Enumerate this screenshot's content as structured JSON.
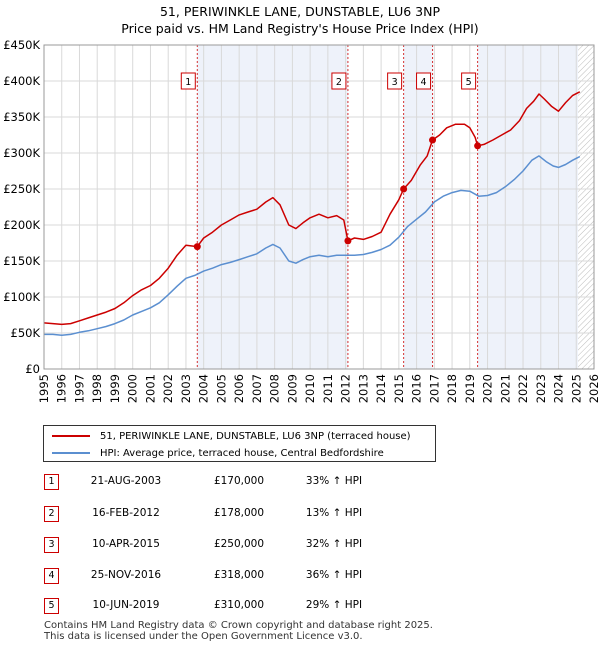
{
  "title_line1": "51, PERIWINKLE LANE, DUNSTABLE, LU6 3NP",
  "title_line2": "Price paid vs. HM Land Registry's House Price Index (HPI)",
  "colors": {
    "property": "#cc0000",
    "hpi": "#5b8fd0",
    "sale_marker": "#cc0000",
    "background_plot": "#ffffff",
    "shade": "#eef2fa",
    "grid": "#d9d9d9",
    "future_hatch": "#bbbbbb"
  },
  "legend": {
    "property_label": "51, PERIWINKLE LANE, DUNSTABLE, LU6 3NP (terraced house)",
    "hpi_label": "HPI: Average price, terraced house, Central Bedfordshire"
  },
  "transactions": [
    {
      "num": "1",
      "date": "21-AUG-2003",
      "price": "£170,000",
      "hpi": "33% ↑ HPI"
    },
    {
      "num": "2",
      "date": "16-FEB-2012",
      "price": "£178,000",
      "hpi": "13% ↑ HPI"
    },
    {
      "num": "3",
      "date": "10-APR-2015",
      "price": "£250,000",
      "hpi": "32% ↑ HPI"
    },
    {
      "num": "4",
      "date": "25-NOV-2016",
      "price": "£318,000",
      "hpi": "36% ↑ HPI"
    },
    {
      "num": "5",
      "date": "10-JUN-2019",
      "price": "£310,000",
      "hpi": "29% ↑ HPI"
    }
  ],
  "footer_line1": "Contains HM Land Registry data © Crown copyright and database right 2025.",
  "footer_line2": "This data is licensed under the Open Government Licence v3.0.",
  "chart_data": {
    "type": "line",
    "title": "51, PERIWINKLE LANE, DUNSTABLE, LU6 3NP",
    "subtitle": "Price paid vs. HM Land Registry's House Price Index (HPI)",
    "xlabel": "",
    "ylabel": "",
    "xlim": [
      1995,
      2026
    ],
    "ylim": [
      0,
      450000
    ],
    "y_ticks": [
      0,
      50000,
      100000,
      150000,
      200000,
      250000,
      300000,
      350000,
      400000,
      450000
    ],
    "y_tick_labels": [
      "£0",
      "£50K",
      "£100K",
      "£150K",
      "£200K",
      "£250K",
      "£300K",
      "£350K",
      "£400K",
      "£450K"
    ],
    "x_ticks": [
      1995,
      1996,
      1997,
      1998,
      1999,
      2000,
      2001,
      2002,
      2003,
      2004,
      2005,
      2006,
      2007,
      2008,
      2009,
      2010,
      2011,
      2012,
      2013,
      2014,
      2015,
      2016,
      2017,
      2018,
      2019,
      2020,
      2021,
      2022,
      2023,
      2024,
      2025,
      2026
    ],
    "x_tick_labels": [
      "1995",
      "1996",
      "1997",
      "1998",
      "1999",
      "2000",
      "2001",
      "2002",
      "2003",
      "2004",
      "2005",
      "2006",
      "2007",
      "2008",
      "2009",
      "2010",
      "2011",
      "2012",
      "2013",
      "2014",
      "2015",
      "2016",
      "2017",
      "2018",
      "2019",
      "2020",
      "2021",
      "2022",
      "2023",
      "2024",
      "2025",
      "2026"
    ],
    "future_from": 2025.1,
    "series": [
      {
        "name": "51, PERIWINKLE LANE, DUNSTABLE, LU6 3NP (terraced house)",
        "x": [
          1995.0,
          1995.5,
          1996.0,
          1996.5,
          1997.0,
          1997.5,
          1998.0,
          1998.5,
          1999.0,
          1999.5,
          2000.0,
          2000.5,
          2001.0,
          2001.5,
          2002.0,
          2002.5,
          2003.0,
          2003.64,
          2004.0,
          2004.5,
          2005.0,
          2005.5,
          2006.0,
          2006.5,
          2007.0,
          2007.5,
          2007.9,
          2008.3,
          2008.8,
          2009.2,
          2009.6,
          2010.0,
          2010.5,
          2011.0,
          2011.5,
          2011.9,
          2012.13,
          2012.5,
          2013.0,
          2013.5,
          2014.0,
          2014.5,
          2015.0,
          2015.27,
          2015.7,
          2016.2,
          2016.6,
          2016.9,
          2017.3,
          2017.7,
          2018.2,
          2018.7,
          2019.0,
          2019.3,
          2019.44,
          2019.8,
          2020.3,
          2020.8,
          2021.3,
          2021.8,
          2022.2,
          2022.6,
          2022.9,
          2023.2,
          2023.6,
          2024.0,
          2024.4,
          2024.8,
          2025.2
        ],
        "values": [
          64000,
          63000,
          62000,
          63000,
          67000,
          71000,
          75000,
          79000,
          84000,
          92000,
          102000,
          110000,
          116000,
          126000,
          140000,
          158000,
          172000,
          170000,
          182000,
          190000,
          200000,
          207000,
          214000,
          218000,
          222000,
          232000,
          238000,
          228000,
          200000,
          195000,
          203000,
          210000,
          215000,
          210000,
          213000,
          207000,
          178000,
          182000,
          180000,
          184000,
          190000,
          215000,
          235000,
          250000,
          262000,
          283000,
          296000,
          318000,
          325000,
          335000,
          340000,
          340000,
          335000,
          322000,
          310000,
          312000,
          318000,
          325000,
          332000,
          345000,
          362000,
          372000,
          382000,
          375000,
          365000,
          358000,
          370000,
          380000,
          385000
        ]
      },
      {
        "name": "HPI: Average price, terraced house, Central Bedfordshire",
        "x": [
          1995.0,
          1995.5,
          1996.0,
          1996.5,
          1997.0,
          1997.5,
          1998.0,
          1998.5,
          1999.0,
          1999.5,
          2000.0,
          2000.5,
          2001.0,
          2001.5,
          2002.0,
          2002.5,
          2003.0,
          2003.5,
          2004.0,
          2004.5,
          2005.0,
          2005.5,
          2006.0,
          2006.5,
          2007.0,
          2007.5,
          2007.9,
          2008.3,
          2008.8,
          2009.2,
          2009.6,
          2010.0,
          2010.5,
          2011.0,
          2011.5,
          2012.0,
          2012.5,
          2013.0,
          2013.5,
          2014.0,
          2014.5,
          2015.0,
          2015.5,
          2016.0,
          2016.5,
          2017.0,
          2017.5,
          2018.0,
          2018.5,
          2019.0,
          2019.5,
          2020.0,
          2020.5,
          2021.0,
          2021.5,
          2022.0,
          2022.5,
          2022.9,
          2023.3,
          2023.7,
          2024.0,
          2024.4,
          2024.8,
          2025.2
        ],
        "values": [
          48000,
          48000,
          47000,
          48000,
          51000,
          53000,
          56000,
          59000,
          63000,
          68000,
          75000,
          80000,
          85000,
          92000,
          103000,
          115000,
          126000,
          130000,
          136000,
          140000,
          145000,
          148000,
          152000,
          156000,
          160000,
          168000,
          173000,
          168000,
          150000,
          147000,
          152000,
          156000,
          158000,
          156000,
          158000,
          158000,
          158000,
          159000,
          162000,
          166000,
          172000,
          183000,
          198000,
          208000,
          218000,
          232000,
          240000,
          245000,
          248000,
          247000,
          240000,
          241000,
          245000,
          253000,
          263000,
          275000,
          290000,
          296000,
          288000,
          282000,
          280000,
          284000,
          290000,
          295000
        ]
      }
    ],
    "sales": [
      {
        "label": "1",
        "x": 2003.64,
        "value": 170000
      },
      {
        "label": "2",
        "x": 2012.13,
        "value": 178000
      },
      {
        "label": "3",
        "x": 2015.27,
        "value": 250000
      },
      {
        "label": "4",
        "x": 2016.9,
        "value": 318000
      },
      {
        "label": "5",
        "x": 2019.44,
        "value": 310000
      }
    ]
  }
}
